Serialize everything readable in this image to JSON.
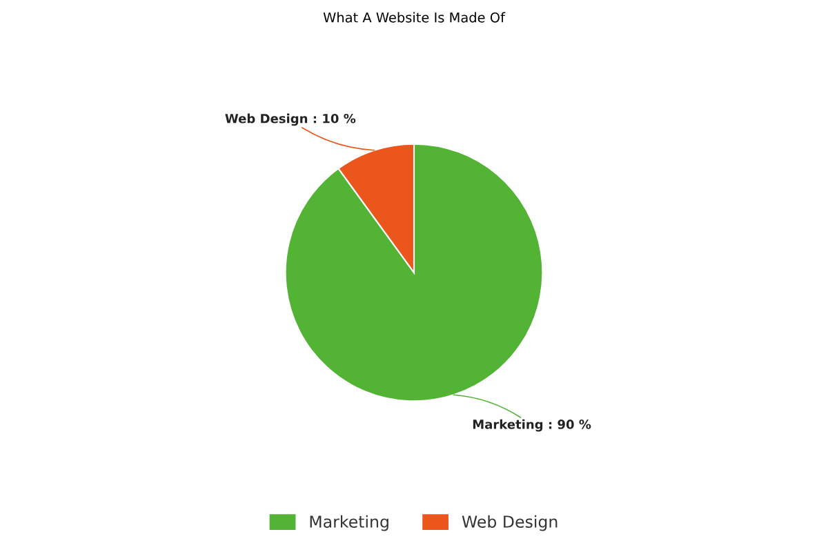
{
  "chart_data": {
    "type": "pie",
    "title": "What A Website Is Made Of",
    "categories": [
      "Marketing",
      "Web Design"
    ],
    "values": [
      90,
      10
    ],
    "colors": [
      "#52b335",
      "#eb561c"
    ],
    "value_labels": [
      "Marketing : 90 %",
      "Web Design : 10 %"
    ],
    "legend": "bottom"
  }
}
